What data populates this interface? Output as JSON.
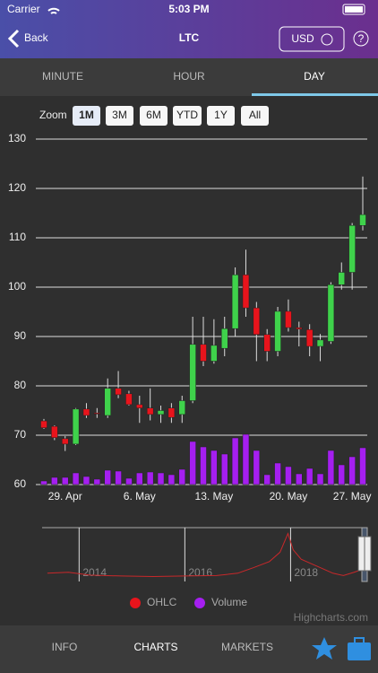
{
  "status_bar": {
    "carrier": "Carrier",
    "time": "5:03 PM"
  },
  "nav": {
    "back": "Back",
    "title": "LTC",
    "currency": "USD",
    "help": "?"
  },
  "tabs": [
    "MINUTE",
    "HOUR",
    "DAY"
  ],
  "zoom": {
    "label": "Zoom",
    "buttons": [
      "1M",
      "3M",
      "6M",
      "YTD",
      "1Y",
      "All"
    ]
  },
  "chart_data": {
    "type": "candlestick",
    "categories": [
      null,
      null,
      "29. Apr",
      null,
      null,
      null,
      null,
      null,
      null,
      "6. May",
      null,
      null,
      null,
      null,
      null,
      null,
      "13. May",
      null,
      null,
      null,
      null,
      null,
      null,
      "20. May",
      null,
      null,
      null,
      null,
      null,
      "27. May",
      null
    ],
    "ylim": [
      60,
      130
    ],
    "yticks": [
      60,
      70,
      80,
      90,
      100,
      110,
      120,
      130
    ],
    "grid": true,
    "y2lim": [
      0,
      385
    ],
    "series": [
      {
        "name": "OHLC",
        "color": "#e8141c",
        "up_color": "#3fd24b",
        "open": [
          72.9,
          71.8,
          69.3,
          68.2,
          75.3,
          74.5,
          74,
          79.5,
          78.4,
          76.2,
          75.5,
          74.2,
          75.5,
          74.2,
          77,
          88.4,
          85,
          87.6,
          91.6,
          102.5,
          95.8,
          90.4,
          87,
          95.1,
          91.8,
          91.4,
          88,
          89,
          100.5,
          103,
          112.5
        ],
        "high": [
          73.3,
          72,
          69.8,
          75.5,
          76.5,
          75.5,
          81.5,
          83,
          79,
          78,
          79.5,
          76,
          76.5,
          78,
          94,
          94,
          93.5,
          94,
          104,
          107.6,
          97,
          91.5,
          96,
          97.5,
          93,
          92.5,
          90.5,
          101,
          105,
          113,
          122.4
        ],
        "low": [
          71.3,
          69,
          66.8,
          68,
          73.5,
          73.5,
          73.5,
          77.5,
          76,
          72.5,
          73,
          72.5,
          72.5,
          72.5,
          76.5,
          84,
          84.5,
          86,
          90,
          94,
          85,
          85,
          86,
          91,
          88,
          86,
          85,
          88.5,
          99.5,
          99.5,
          111.5
        ],
        "close": [
          71.5,
          69.5,
          68.2,
          75.3,
          74,
          74.3,
          79.5,
          78.2,
          76.2,
          75.5,
          74.2,
          75,
          73.6,
          77,
          88.4,
          85,
          88.2,
          91.6,
          102.5,
          95.8,
          90.4,
          87,
          95.1,
          91.8,
          91.5,
          88,
          89.3,
          100.5,
          103,
          112.5,
          114.7
        ]
      },
      {
        "name": "Volume",
        "color": "#a51ff0",
        "axis": "y2",
        "values": [
          4,
          8,
          8,
          13,
          9,
          6,
          16,
          15,
          7,
          13,
          14,
          13,
          11,
          17,
          48,
          42,
          38,
          34,
          52,
          56,
          38,
          11,
          24,
          20,
          12,
          18,
          12,
          38,
          22,
          31,
          41
        ]
      }
    ],
    "navigator": {
      "xlim": [
        2013.3,
        2019.45
      ],
      "xticks": [
        2014,
        2016,
        2018
      ],
      "ylim": [
        0,
        1
      ],
      "color": "#c8282a",
      "x": [
        2013.4,
        2013.8,
        2014.2,
        2014.8,
        2015.4,
        2016,
        2016.6,
        2017,
        2017.3,
        2017.6,
        2017.8,
        2017.95,
        2018.05,
        2018.2,
        2018.4,
        2018.6,
        2018.8,
        2019,
        2019.2,
        2019.4
      ],
      "values": [
        0.1,
        0.12,
        0.06,
        0.04,
        0.03,
        0.04,
        0.05,
        0.1,
        0.22,
        0.35,
        0.55,
        0.95,
        0.6,
        0.4,
        0.3,
        0.2,
        0.1,
        0.05,
        0.12,
        0.2
      ]
    },
    "credit": "Highcharts.com"
  },
  "bottom_tabs": [
    "INFO",
    "CHARTS",
    "MARKETS"
  ]
}
